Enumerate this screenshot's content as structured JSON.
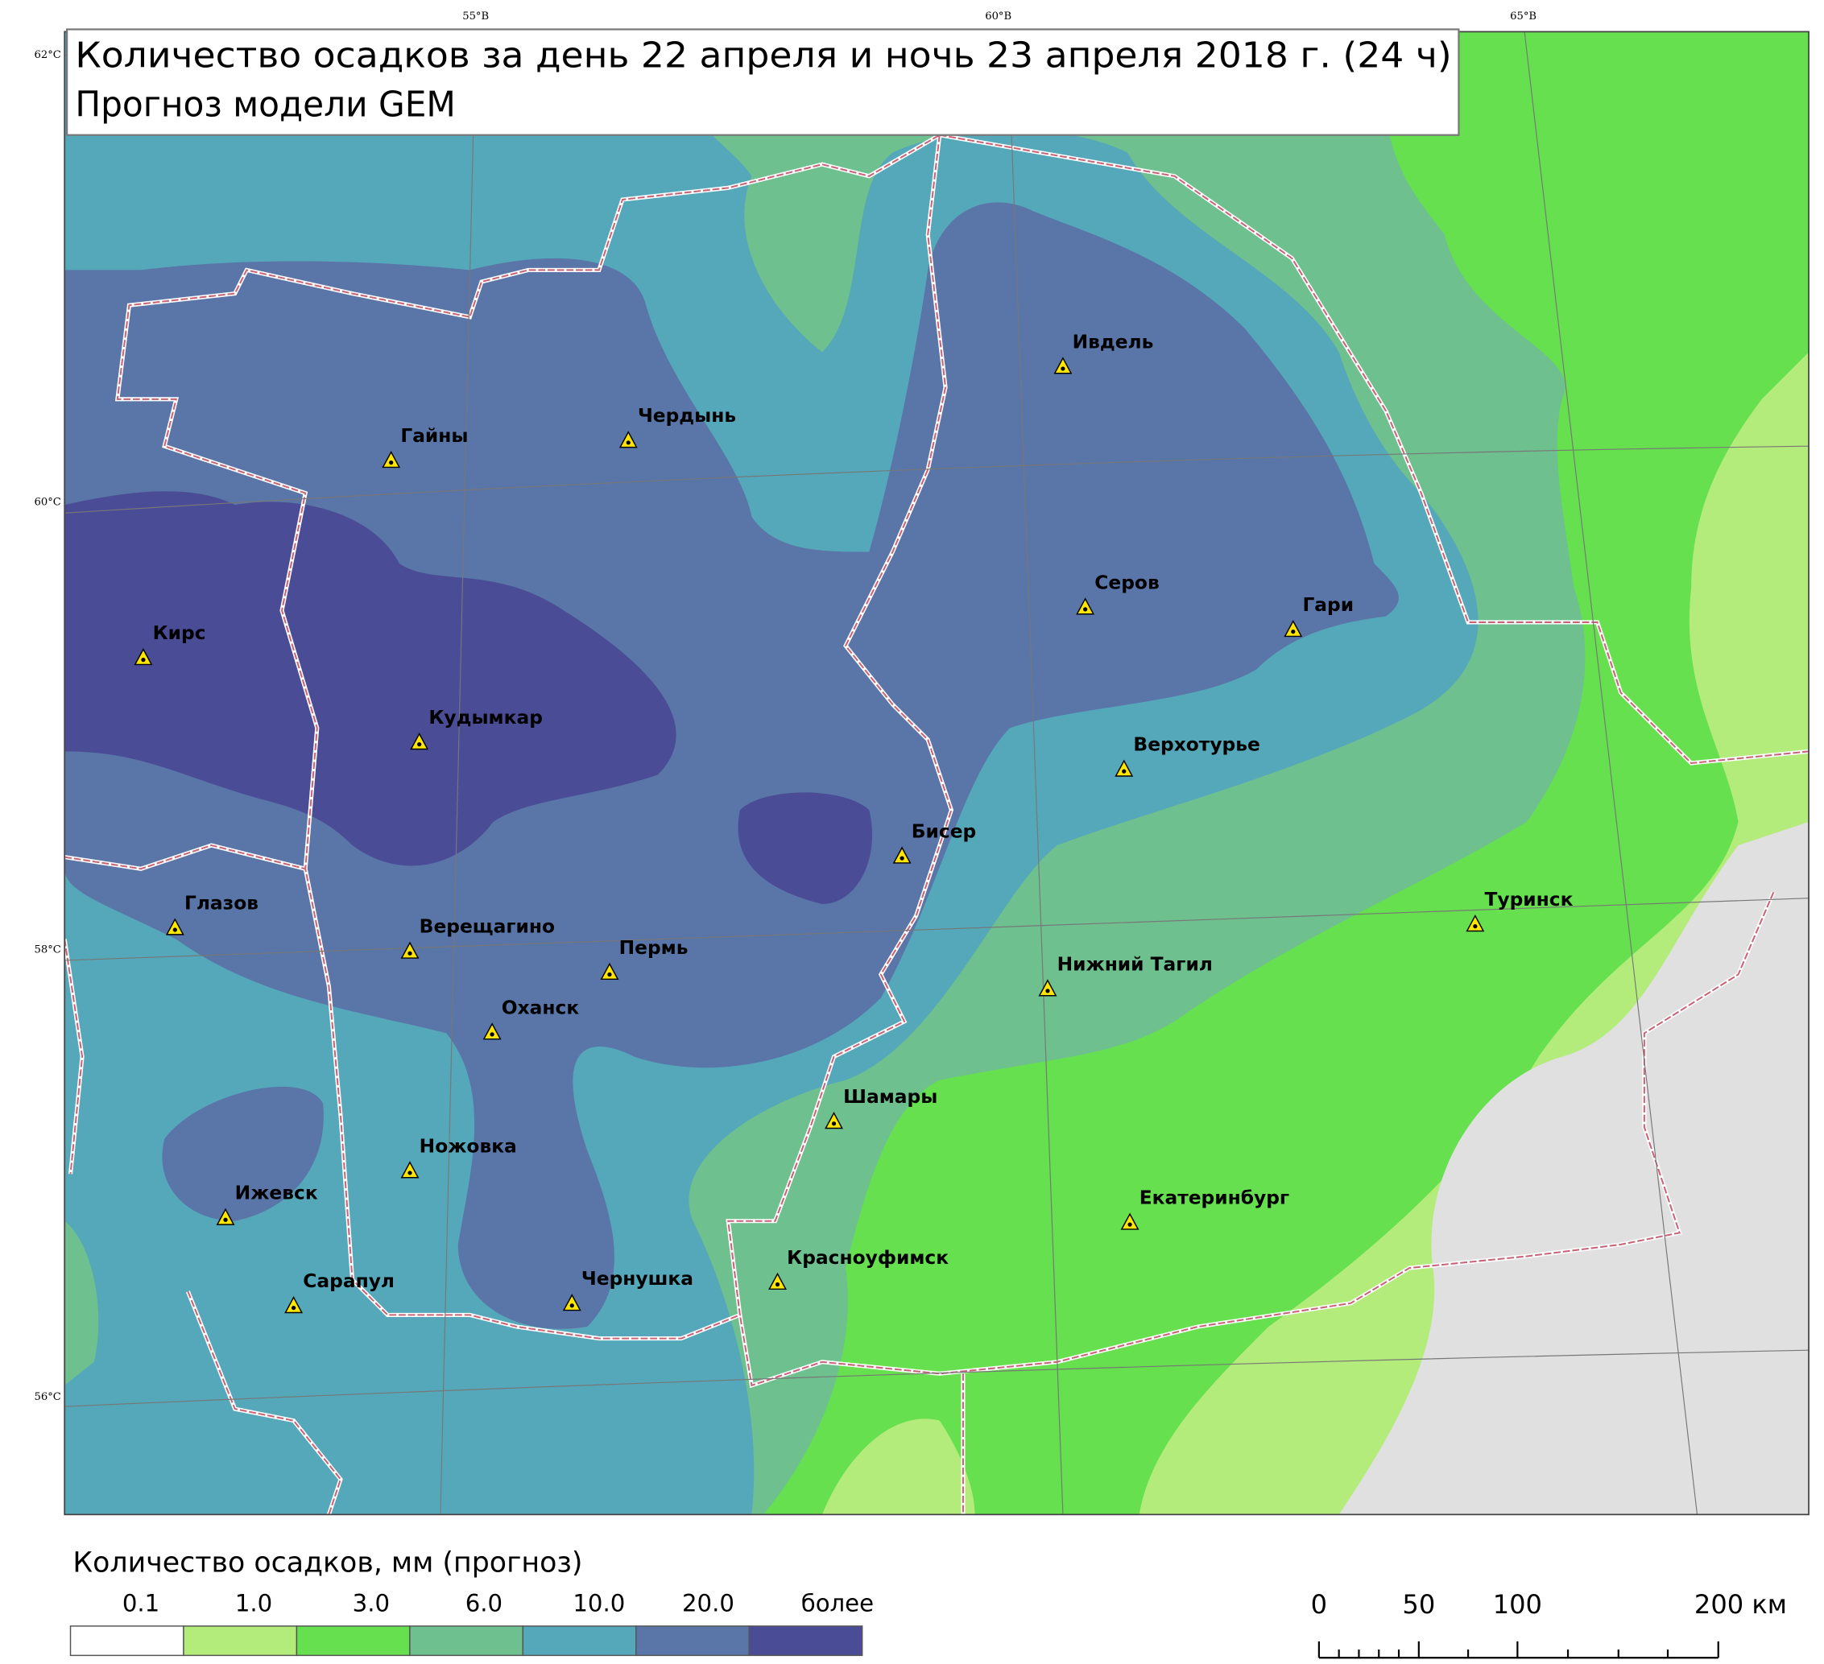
{
  "header": {
    "title_lines": [
      "Количество осадков за день 22 апреля и ночь 23 апреля 2018 г. (24 ч)",
      "Прогноз модели GEM"
    ]
  },
  "grid": {
    "longitudes": [
      "55°В",
      "60°В",
      "65°В"
    ],
    "latitudes": [
      "62°С",
      "60°С",
      "58°С",
      "56°С"
    ]
  },
  "cities": [
    {
      "name": "Ивдель"
    },
    {
      "name": "Гайны"
    },
    {
      "name": "Чердынь"
    },
    {
      "name": "Кирс"
    },
    {
      "name": "Серов"
    },
    {
      "name": "Гари"
    },
    {
      "name": "Кудымкар"
    },
    {
      "name": "Верхотурье"
    },
    {
      "name": "Бисер"
    },
    {
      "name": "Туринск"
    },
    {
      "name": "Глазов"
    },
    {
      "name": "Верещагино"
    },
    {
      "name": "Пермь"
    },
    {
      "name": "Нижний Тагил"
    },
    {
      "name": "Оханск"
    },
    {
      "name": "Шамары"
    },
    {
      "name": "Ножовка"
    },
    {
      "name": "Ижевск"
    },
    {
      "name": "Екатеринбург"
    },
    {
      "name": "Красноуфимск"
    },
    {
      "name": "Сарапул"
    },
    {
      "name": "Чернушка"
    }
  ],
  "legend": {
    "title": "Количество осадков, мм (прогноз)",
    "classes": [
      {
        "label": "0.1",
        "color": "#ffffff"
      },
      {
        "label": "1.0",
        "color": "#b3ec7a"
      },
      {
        "label": "3.0",
        "color": "#66e04e"
      },
      {
        "label": "6.0",
        "color": "#6ec08f"
      },
      {
        "label": "10.0",
        "color": "#55a8ba"
      },
      {
        "label": "20.0",
        "color": "#5a76a8"
      },
      {
        "label": "более",
        "color": "#4b4c96"
      }
    ]
  },
  "scale_bar": {
    "labels": [
      "0",
      "50",
      "100",
      "200 км"
    ]
  }
}
